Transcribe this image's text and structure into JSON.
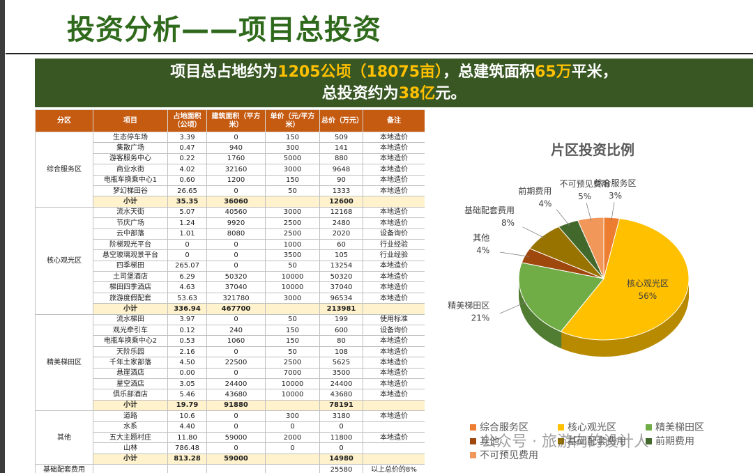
{
  "header": {
    "title": "投资分析——项目总投资"
  },
  "banner": {
    "line1": [
      "项目总占地约为",
      "1205公顷（18075亩）",
      "，总建筑面积",
      "65万",
      "平米，"
    ],
    "line2": [
      "总投资约为",
      "38亿",
      "元。"
    ]
  },
  "table": {
    "columns": [
      "分区",
      "项目",
      "占地面积（公顷）",
      "建筑面积（平方米）",
      "单价（元/平方米）",
      "总价（万元）",
      "备注"
    ],
    "groups": [
      {
        "zone": "综合服务区",
        "rows": [
          [
            "生态停车场",
            "3.39",
            "0",
            "150",
            "509",
            "本地造价"
          ],
          [
            "集散广场",
            "0.47",
            "940",
            "300",
            "141",
            "本地造价"
          ],
          [
            "游客服务中心",
            "0.22",
            "1760",
            "5000",
            "880",
            "本地造价"
          ],
          [
            "商业水街",
            "4.02",
            "32160",
            "3000",
            "9648",
            "本地造价"
          ],
          [
            "电瓶车换乘中心1",
            "0.60",
            "1200",
            "150",
            "90",
            "本地造价"
          ],
          [
            "梦幻梯田谷",
            "26.65",
            "0",
            "50",
            "1333",
            "本地造价"
          ]
        ],
        "subtotal": [
          "小计",
          "35.35",
          "36060",
          null,
          "12600",
          null
        ]
      },
      {
        "zone": "核心观光区",
        "rows": [
          [
            "流水天街",
            "5.07",
            "40560",
            "3000",
            "12168",
            "本地造价"
          ],
          [
            "节庆广场",
            "1.24",
            "9920",
            "2500",
            "2480",
            "本地造价"
          ],
          [
            "云中部落",
            "1.01",
            "8080",
            "2500",
            "2020",
            "设备询价"
          ],
          [
            "阶梯观光平台",
            "0",
            "0",
            "1000",
            "60",
            "行业经验"
          ],
          [
            "悬空玻璃观景平台",
            "0",
            "0",
            "3500",
            "105",
            "行业经验"
          ],
          [
            "四季梯田",
            "265.07",
            "0",
            "50",
            "13254",
            "本地造价"
          ],
          [
            "土司堡酒店",
            "6.29",
            "50320",
            "10000",
            "50320",
            "本地造价"
          ],
          [
            "梯田四季酒店",
            "4.63",
            "37040",
            "10000",
            "37040",
            "本地造价"
          ],
          [
            "旅游度假配套",
            "53.63",
            "321780",
            "3000",
            "96534",
            "本地造价"
          ]
        ],
        "subtotal": [
          "小计",
          "336.94",
          "467700",
          null,
          "213981",
          null
        ]
      },
      {
        "zone": "精美梯田区",
        "rows": [
          [
            "流水梯田",
            "3.97",
            "0",
            "50",
            "199",
            "使用标准"
          ],
          [
            "观光牵引车",
            "0.12",
            "240",
            "150",
            "600",
            "设备询价"
          ],
          [
            "电瓶车换乘中心2",
            "0.53",
            "1060",
            "150",
            "80",
            "本地造价"
          ],
          [
            "天阶乐园",
            "2.16",
            "0",
            "50",
            "108",
            "本地造价"
          ],
          [
            "千年土家部落",
            "4.50",
            "22500",
            "2500",
            "5625",
            "本地造价"
          ],
          [
            "悬崖酒店",
            "0.00",
            "0",
            "7000",
            "3500",
            "本地造价"
          ],
          [
            "星空酒店",
            "3.05",
            "24400",
            "10000",
            "24400",
            "本地造价"
          ],
          [
            "俱乐部酒店",
            "5.46",
            "43680",
            "10000",
            "43680",
            "本地造价"
          ]
        ],
        "subtotal": [
          "小计",
          "19.79",
          "91880",
          null,
          "78191",
          null
        ]
      },
      {
        "zone": "其他",
        "rows": [
          [
            "道路",
            "10.6",
            "0",
            "300",
            "3180",
            "本地造价"
          ],
          [
            "水系",
            "4.40",
            "0",
            "0",
            "0",
            null
          ],
          [
            "五大主题村庄",
            "11.80",
            "59000",
            "2000",
            "11800",
            "本地造价"
          ],
          [
            "山林",
            "786.48",
            "0",
            "0",
            "0",
            null
          ]
        ],
        "subtotal": [
          "小计",
          "813.28",
          "59000",
          null,
          "14980",
          null
        ]
      }
    ],
    "extra": {
      "zone": "基础配套费用",
      "cells": [
        null,
        null,
        null,
        null,
        "25580",
        "以上总价的8%"
      ]
    }
  },
  "chart_data": {
    "type": "pie",
    "title": "片区投资比例",
    "categories": [
      "综合服务区",
      "核心观光区",
      "精美梯田区",
      "其他",
      "基础配套费用",
      "前期费用",
      "不可预见费用"
    ],
    "values": [
      3,
      56,
      21,
      4,
      8,
      4,
      5
    ],
    "value_labels": [
      "3%",
      "56%",
      "21%",
      "4%",
      "8%",
      "4%",
      "5%"
    ],
    "colors": [
      "#ed7d31",
      "#ffc000",
      "#70ad47",
      "#9e480e",
      "#997300",
      "#43682b",
      "#f1975a"
    ],
    "legend": "bottom"
  },
  "watermark": "公众号 · 旅游向的设计人"
}
